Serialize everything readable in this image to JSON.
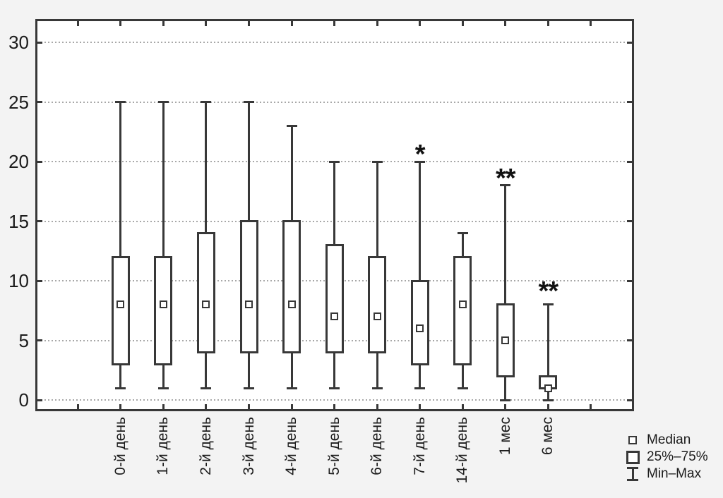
{
  "chart_data": {
    "type": "box",
    "title": "",
    "xlabel": "",
    "ylabel": "",
    "ylim": [
      -1,
      32
    ],
    "yticks": [
      0,
      5,
      10,
      15,
      20,
      25,
      30
    ],
    "grid": "horizontal dotted lines at each y tick",
    "legend_position": "bottom-right",
    "categories": [
      "0-й день",
      "1-й день",
      "2-й день",
      "3-й день",
      "4-й день",
      "5-й день",
      "6-й день",
      "7-й день",
      "14-й день",
      "1 мес",
      "6 мес"
    ],
    "boxes": [
      {
        "label": "0-й день",
        "min": 1,
        "q1": 3,
        "median": 8,
        "q3": 12,
        "max": 25,
        "annotation": "",
        "annotation_y": null
      },
      {
        "label": "1-й день",
        "min": 1,
        "q1": 3,
        "median": 8,
        "q3": 12,
        "max": 25,
        "annotation": "",
        "annotation_y": null
      },
      {
        "label": "2-й день",
        "min": 1,
        "q1": 4,
        "median": 8,
        "q3": 14,
        "max": 25,
        "annotation": "",
        "annotation_y": null
      },
      {
        "label": "3-й день",
        "min": 1,
        "q1": 4,
        "median": 8,
        "q3": 15,
        "max": 25,
        "annotation": "",
        "annotation_y": null
      },
      {
        "label": "4-й день",
        "min": 1,
        "q1": 4,
        "median": 8,
        "q3": 15,
        "max": 23,
        "annotation": "",
        "annotation_y": null
      },
      {
        "label": "5-й день",
        "min": 1,
        "q1": 4,
        "median": 7,
        "q3": 13,
        "max": 20,
        "annotation": "",
        "annotation_y": null
      },
      {
        "label": "6-й день",
        "min": 1,
        "q1": 4,
        "median": 7,
        "q3": 12,
        "max": 20,
        "annotation": "",
        "annotation_y": null
      },
      {
        "label": "7-й день",
        "min": 1,
        "q1": 3,
        "median": 6,
        "q3": 10,
        "max": 20,
        "annotation": "*",
        "annotation_y": 21
      },
      {
        "label": "14-й день",
        "min": 1,
        "q1": 3,
        "median": 8,
        "q3": 12,
        "max": 14,
        "annotation": "",
        "annotation_y": null
      },
      {
        "label": "1 мес",
        "min": 0,
        "q1": 2,
        "median": 5,
        "q3": 8,
        "max": 18,
        "annotation": "**",
        "annotation_y": 19
      },
      {
        "label": "6 мес",
        "min": 0,
        "q1": 1,
        "median": 1,
        "q3": 2,
        "max": 8,
        "annotation": "**",
        "annotation_y": 9.5
      }
    ],
    "legend": {
      "items": [
        {
          "symbol": "median-square-icon",
          "label": "Median"
        },
        {
          "symbol": "box-25-75-icon",
          "label": "25%–75%"
        },
        {
          "symbol": "whisker-icon",
          "label": "Min–Max"
        }
      ]
    }
  },
  "colors": {
    "background": "#f3f3f3",
    "plot_background": "#ffffff",
    "stroke": "#383838",
    "grid": "#999999",
    "text": "#1b1b1b"
  }
}
